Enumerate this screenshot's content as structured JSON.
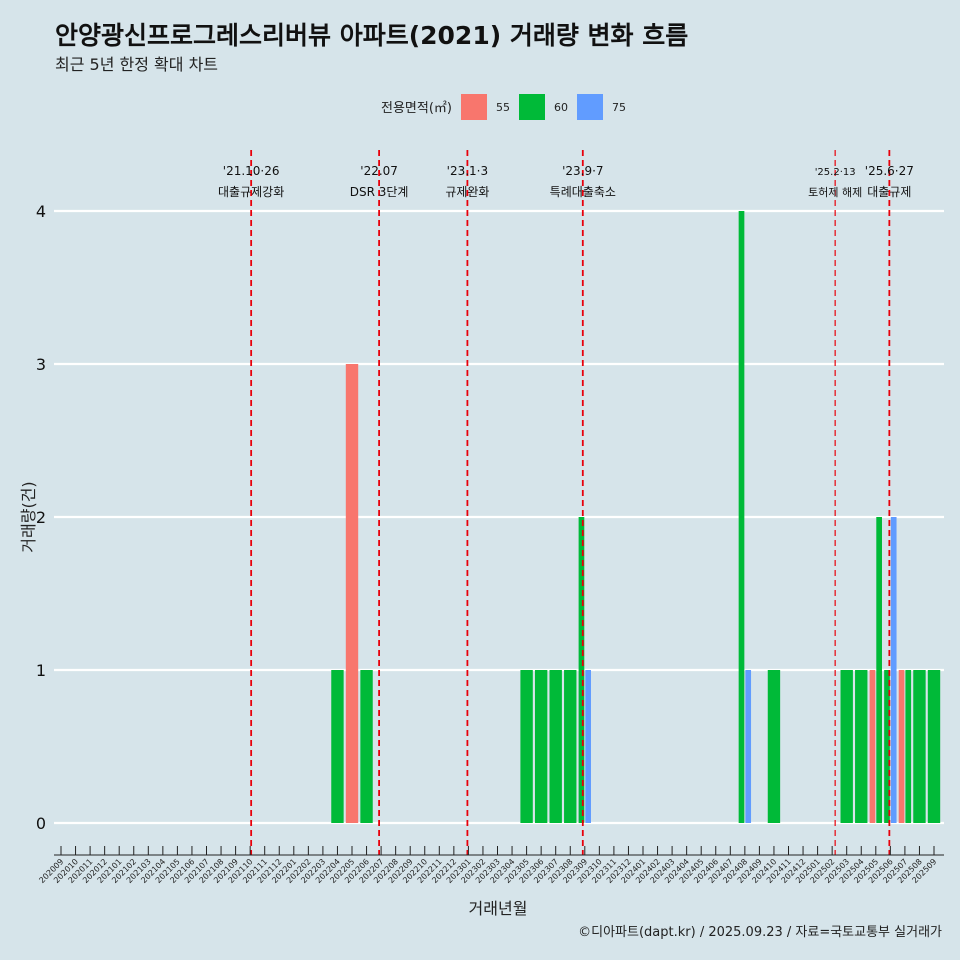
{
  "chart_data": {
    "type": "bar",
    "title": "안양광신프로그레스리버뷰 아파트(2021) 거래량 변화 흐름",
    "subtitle": "최근 5년 한정 확대 차트",
    "xlabel": "거래년월",
    "ylabel": "거래량(건)",
    "ylim": [
      0,
      4
    ],
    "yticks": [
      0,
      1,
      2,
      3,
      4
    ],
    "caption": "©디아파트(dapt.kr) / 2025.09.23 / 자료=국토교통부 실거래가",
    "legend": {
      "title": "전용면적(㎡)",
      "position": "top"
    },
    "categories": [
      "202009",
      "202010",
      "202011",
      "202012",
      "202101",
      "202102",
      "202103",
      "202104",
      "202105",
      "202106",
      "202107",
      "202108",
      "202109",
      "202110",
      "202111",
      "202112",
      "202201",
      "202202",
      "202203",
      "202204",
      "202205",
      "202206",
      "202207",
      "202208",
      "202209",
      "202210",
      "202211",
      "202212",
      "202301",
      "202302",
      "202303",
      "202304",
      "202305",
      "202306",
      "202307",
      "202308",
      "202309",
      "202310",
      "202311",
      "202312",
      "202401",
      "202402",
      "202403",
      "202404",
      "202405",
      "202406",
      "202407",
      "202408",
      "202409",
      "202410",
      "202411",
      "202412",
      "202501",
      "202502",
      "202503",
      "202504",
      "202505",
      "202506",
      "202507",
      "202508",
      "202509"
    ],
    "series": [
      {
        "name": "55",
        "color": "#f8766d",
        "values": [
          0,
          0,
          0,
          0,
          0,
          0,
          0,
          0,
          0,
          0,
          0,
          0,
          0,
          0,
          0,
          0,
          0,
          0,
          0,
          0,
          3,
          0,
          0,
          0,
          0,
          0,
          0,
          0,
          0,
          0,
          0,
          0,
          0,
          0,
          0,
          0,
          0,
          0,
          0,
          0,
          0,
          0,
          0,
          0,
          0,
          0,
          0,
          0,
          0,
          0,
          0,
          0,
          0,
          0,
          0,
          0,
          1,
          0,
          1,
          0,
          0
        ]
      },
      {
        "name": "60",
        "color": "#00ba38",
        "values": [
          0,
          0,
          0,
          0,
          0,
          0,
          0,
          0,
          0,
          0,
          0,
          0,
          0,
          0,
          0,
          0,
          0,
          0,
          0,
          1,
          0,
          1,
          0,
          0,
          0,
          0,
          0,
          0,
          0,
          0,
          0,
          0,
          1,
          1,
          1,
          1,
          2,
          0,
          0,
          0,
          0,
          0,
          0,
          0,
          0,
          0,
          0,
          4,
          0,
          1,
          0,
          0,
          0,
          0,
          1,
          1,
          2,
          1,
          1,
          1,
          1
        ]
      },
      {
        "name": "75",
        "color": "#619cff",
        "values": [
          0,
          0,
          0,
          0,
          0,
          0,
          0,
          0,
          0,
          0,
          0,
          0,
          0,
          0,
          0,
          0,
          0,
          0,
          0,
          0,
          0,
          0,
          0,
          0,
          0,
          0,
          0,
          0,
          0,
          0,
          0,
          0,
          0,
          0,
          0,
          0,
          1,
          0,
          0,
          0,
          0,
          0,
          0,
          0,
          0,
          0,
          0,
          1,
          0,
          0,
          0,
          0,
          0,
          0,
          0,
          0,
          0,
          2,
          0,
          0,
          0
        ]
      }
    ],
    "annotations": [
      {
        "month": "202110",
        "date": "'21.10·26",
        "label": "대출규제강화"
      },
      {
        "month": "202207",
        "date": "'22.07",
        "label": "DSR 3단계"
      },
      {
        "month": "202301",
        "date": "'23.1·3",
        "label": "규제완화"
      },
      {
        "month": "202309",
        "date": "'23.9·7",
        "label": "특례대출축소"
      },
      {
        "month": "202502",
        "date": "'25.2·13",
        "label": "토허제 해제"
      },
      {
        "month": "202506",
        "date": "'25.6·27",
        "label": "대출규제"
      }
    ]
  }
}
